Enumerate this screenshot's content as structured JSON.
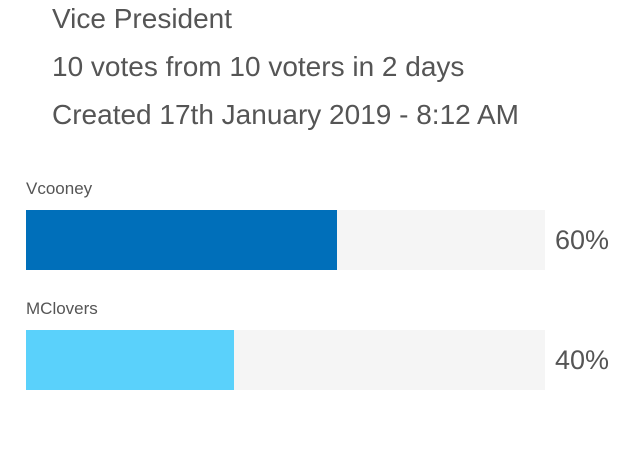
{
  "poll": {
    "title": "Vice President",
    "votes_summary": "10 votes from 10 voters in 2 days",
    "created": "Created 17th January 2019 - 8:12 AM"
  },
  "options": [
    {
      "label": "Vcooney",
      "percent_text": "60%",
      "fraction": 0.6,
      "color": "#006fba"
    },
    {
      "label": "MClovers",
      "percent_text": "40%",
      "fraction": 0.4,
      "color": "#5ad1fb"
    }
  ]
}
